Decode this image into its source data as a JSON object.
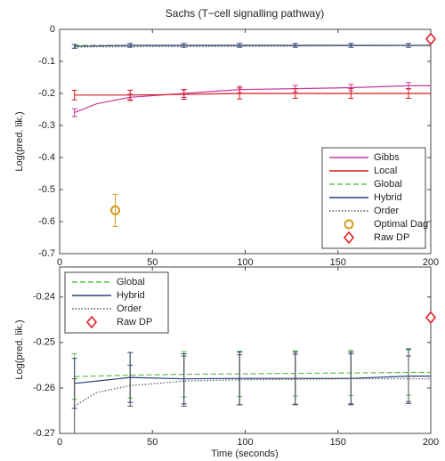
{
  "chart_data": [
    {
      "type": "line",
      "title": "Sachs (T−cell signalling pathway)",
      "ylabel": "Log(pred. lik.)",
      "xlim": [
        0,
        200
      ],
      "xticks": [
        0,
        50,
        100,
        150,
        200
      ],
      "ylim": [
        -0.7,
        0
      ],
      "yticks": [
        -0.7,
        -0.6,
        -0.5,
        -0.4,
        -0.3,
        -0.2,
        -0.1,
        0
      ],
      "legend": "lower right",
      "series": [
        {
          "name": "Gibbs",
          "color": "#c8379b",
          "style": "solid",
          "x": [
            8,
            20,
            38,
            67,
            97,
            127,
            157,
            188,
            200
          ],
          "values": [
            -0.26,
            -0.232,
            -0.212,
            -0.2,
            -0.188,
            -0.185,
            -0.182,
            -0.176,
            -0.176
          ],
          "errors": [
            0.012,
            null,
            0.01,
            0.012,
            0.01,
            0.01,
            0.01,
            0.01,
            null
          ]
        },
        {
          "name": "Local",
          "color": "#d7191c",
          "style": "solid",
          "x": [
            8,
            38,
            67,
            97,
            127,
            157,
            188,
            200
          ],
          "values": [
            -0.205,
            -0.205,
            -0.203,
            -0.2,
            -0.2,
            -0.2,
            -0.2,
            -0.2
          ],
          "errors": [
            0.015,
            0.015,
            0.015,
            0.017,
            0.015,
            0.015,
            0.015,
            null
          ]
        },
        {
          "name": "Global",
          "color": "#5cbf4a",
          "style": "dashed",
          "x": [
            8,
            200
          ],
          "values": [
            -0.05,
            -0.05
          ]
        },
        {
          "name": "Hybrid",
          "color": "#2c3e7a",
          "style": "solid",
          "x": [
            8,
            38,
            67,
            97,
            127,
            157,
            188,
            200
          ],
          "values": [
            -0.053,
            -0.05,
            -0.05,
            -0.05,
            -0.05,
            -0.05,
            -0.05,
            -0.05
          ],
          "errors": [
            0.006,
            0.006,
            0.006,
            0.006,
            0.006,
            0.006,
            0.006,
            null
          ]
        },
        {
          "name": "Order",
          "color": "#555555",
          "style": "dotted",
          "x": [
            8,
            200
          ],
          "values": [
            -0.055,
            -0.05
          ]
        },
        {
          "name": "Optimal Dag",
          "color": "#d99a1a",
          "marker": "circle",
          "x": [
            30
          ],
          "values": [
            -0.565
          ],
          "errors": [
            0.05
          ]
        },
        {
          "name": "Raw DP",
          "color": "#e0202a",
          "marker": "diamond",
          "x": [
            200
          ],
          "values": [
            -0.03
          ]
        }
      ]
    },
    {
      "type": "line",
      "ylabel": "Log(pred. lik.)",
      "xlabel": "Time (seconds)",
      "xlim": [
        0,
        200
      ],
      "xticks": [
        0,
        50,
        100,
        150,
        200
      ],
      "ylim": [
        -0.27,
        -0.2334
      ],
      "yticks": [
        -0.27,
        -0.26,
        -0.25,
        -0.24
      ],
      "legend": "upper left",
      "series": [
        {
          "name": "Global",
          "color": "#5cbf4a",
          "style": "dashed",
          "x": [
            8,
            38,
            67,
            97,
            127,
            157,
            188,
            200
          ],
          "values": [
            -0.2575,
            -0.2572,
            -0.257,
            -0.2569,
            -0.2568,
            -0.2567,
            -0.2566,
            -0.2566
          ],
          "errors": [
            0.005,
            0.005,
            0.005,
            0.005,
            0.005,
            0.005,
            0.005,
            null
          ]
        },
        {
          "name": "Hybrid",
          "color": "#2c3e7a",
          "style": "solid",
          "x": [
            8,
            38,
            67,
            97,
            127,
            157,
            188,
            200
          ],
          "values": [
            -0.259,
            -0.2577,
            -0.258,
            -0.2579,
            -0.2579,
            -0.2579,
            -0.2574,
            -0.2574
          ],
          "errors": [
            0.0055,
            0.0055,
            0.0055,
            0.0058,
            0.0058,
            0.0058,
            0.006,
            null
          ]
        },
        {
          "name": "Order",
          "color": "#555555",
          "style": "dotted",
          "x": [
            8,
            20,
            38,
            67,
            97,
            127,
            157,
            188,
            200
          ],
          "values": [
            -0.264,
            -0.261,
            -0.2595,
            -0.2585,
            -0.2582,
            -0.2581,
            -0.258,
            -0.258,
            -0.258
          ],
          "errors": [
            0.006,
            null,
            0.0045,
            0.0055,
            0.0055,
            0.0055,
            0.0055,
            0.005,
            null
          ]
        },
        {
          "name": "Raw DP",
          "color": "#e0202a",
          "marker": "diamond",
          "x": [
            200
          ],
          "values": [
            -0.2445
          ]
        }
      ]
    }
  ]
}
